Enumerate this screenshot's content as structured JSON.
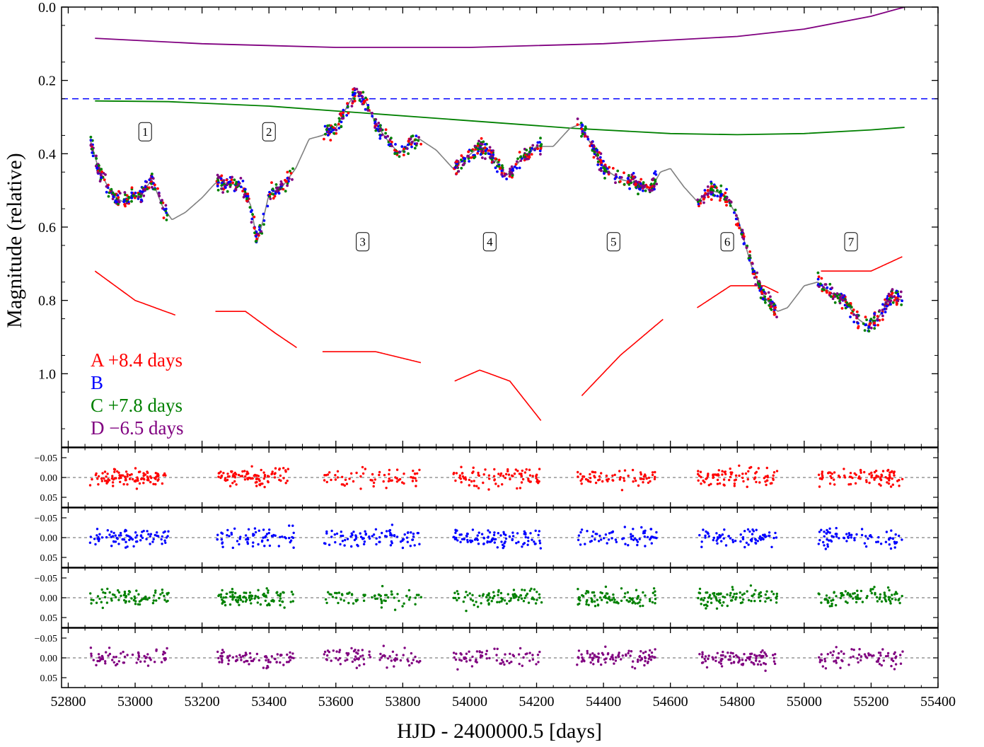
{
  "chart_data": {
    "type": "scatter",
    "title": "",
    "xlabel": "HJD - 2400000.5 [days]",
    "ylabel": "Magnitude (relative)",
    "xlim": [
      52780,
      55400
    ],
    "ylim_main": [
      0.0,
      1.2
    ],
    "y_inverted": true,
    "x_ticks": [
      52800,
      53000,
      53200,
      53400,
      53600,
      53800,
      54000,
      54200,
      54400,
      54600,
      54800,
      55000,
      55200,
      55400
    ],
    "y_ticks_main": [
      0.0,
      0.2,
      0.4,
      0.6,
      0.8,
      1.0
    ],
    "y_tick_labels_main": [
      "0.0",
      "0.2",
      "0.4",
      "0.6",
      "0.8",
      "1.0"
    ],
    "residual_ylim": [
      -0.075,
      0.075
    ],
    "residual_ticks": [
      -0.05,
      0.0,
      0.05
    ],
    "residual_tick_labels": [
      "−0.05",
      "0.00",
      "0.05"
    ],
    "legend_position": "lower-left",
    "legend": [
      {
        "label": "A +8.4 days",
        "color": "#ff0000"
      },
      {
        "label": "B",
        "color": "#0000ff"
      },
      {
        "label": "C +7.8 days",
        "color": "#008000"
      },
      {
        "label": "D −6.5 days",
        "color": "#800080"
      }
    ],
    "season_labels": [
      {
        "text": "1",
        "x": 53030,
        "y": 0.34
      },
      {
        "text": "2",
        "x": 53400,
        "y": 0.34
      },
      {
        "text": "3",
        "x": 53680,
        "y": 0.64
      },
      {
        "text": "4",
        "x": 54060,
        "y": 0.64
      },
      {
        "text": "5",
        "x": 54430,
        "y": 0.64
      },
      {
        "text": "6",
        "x": 54770,
        "y": 0.64
      },
      {
        "text": "7",
        "x": 55140,
        "y": 0.64
      }
    ],
    "seasons": [
      {
        "start": 52865,
        "end": 53100
      },
      {
        "start": 53245,
        "end": 53475
      },
      {
        "start": 53565,
        "end": 53855
      },
      {
        "start": 53950,
        "end": 54215
      },
      {
        "start": 54320,
        "end": 54560
      },
      {
        "start": 54680,
        "end": 54920
      },
      {
        "start": 55040,
        "end": 55295
      }
    ],
    "reference_line": {
      "y": 0.25,
      "color": "#0000ff",
      "style": "dashed"
    },
    "curve_points": [
      [
        52865,
        0.36
      ],
      [
        52890,
        0.44
      ],
      [
        52930,
        0.51
      ],
      [
        52960,
        0.53
      ],
      [
        52990,
        0.52
      ],
      [
        53020,
        0.51
      ],
      [
        53050,
        0.47
      ],
      [
        53080,
        0.54
      ],
      [
        53110,
        0.58
      ],
      [
        53150,
        0.56
      ],
      [
        53200,
        0.52
      ],
      [
        53240,
        0.48
      ],
      [
        53280,
        0.48
      ],
      [
        53320,
        0.49
      ],
      [
        53345,
        0.54
      ],
      [
        53365,
        0.64
      ],
      [
        53380,
        0.59
      ],
      [
        53400,
        0.51
      ],
      [
        53440,
        0.49
      ],
      [
        53480,
        0.44
      ],
      [
        53520,
        0.36
      ],
      [
        53560,
        0.35
      ],
      [
        53600,
        0.33
      ],
      [
        53640,
        0.26
      ],
      [
        53665,
        0.23
      ],
      [
        53690,
        0.26
      ],
      [
        53720,
        0.32
      ],
      [
        53760,
        0.37
      ],
      [
        53790,
        0.4
      ],
      [
        53820,
        0.37
      ],
      [
        53850,
        0.36
      ],
      [
        53900,
        0.39
      ],
      [
        53950,
        0.44
      ],
      [
        53990,
        0.41
      ],
      [
        54030,
        0.38
      ],
      [
        54070,
        0.41
      ],
      [
        54110,
        0.46
      ],
      [
        54150,
        0.42
      ],
      [
        54200,
        0.38
      ],
      [
        54250,
        0.38
      ],
      [
        54300,
        0.33
      ],
      [
        54330,
        0.32
      ],
      [
        54360,
        0.37
      ],
      [
        54400,
        0.44
      ],
      [
        54450,
        0.47
      ],
      [
        54500,
        0.48
      ],
      [
        54540,
        0.5
      ],
      [
        54570,
        0.45
      ],
      [
        54600,
        0.44
      ],
      [
        54640,
        0.49
      ],
      [
        54680,
        0.53
      ],
      [
        54720,
        0.5
      ],
      [
        54760,
        0.51
      ],
      [
        54800,
        0.57
      ],
      [
        54840,
        0.7
      ],
      [
        54880,
        0.79
      ],
      [
        54920,
        0.83
      ],
      [
        54950,
        0.82
      ],
      [
        55000,
        0.76
      ],
      [
        55040,
        0.75
      ],
      [
        55080,
        0.78
      ],
      [
        55120,
        0.8
      ],
      [
        55160,
        0.85
      ],
      [
        55190,
        0.87
      ],
      [
        55220,
        0.85
      ],
      [
        55260,
        0.79
      ],
      [
        55295,
        0.8
      ]
    ],
    "offset_curves": [
      {
        "name": "purple",
        "color": "#800080",
        "points": [
          [
            52880,
            0.085
          ],
          [
            53200,
            0.1
          ],
          [
            53600,
            0.11
          ],
          [
            54000,
            0.11
          ],
          [
            54400,
            0.1
          ],
          [
            54800,
            0.08
          ],
          [
            55000,
            0.06
          ],
          [
            55200,
            0.025
          ],
          [
            55300,
            0.0
          ]
        ]
      },
      {
        "name": "green",
        "color": "#008000",
        "points": [
          [
            52880,
            0.256
          ],
          [
            53100,
            0.258
          ],
          [
            53400,
            0.27
          ],
          [
            53700,
            0.29
          ],
          [
            54000,
            0.31
          ],
          [
            54300,
            0.33
          ],
          [
            54600,
            0.345
          ],
          [
            54800,
            0.348
          ],
          [
            55000,
            0.345
          ],
          [
            55200,
            0.335
          ],
          [
            55300,
            0.328
          ]
        ]
      }
    ],
    "red_segments": [
      [
        [
          52880,
          0.72
        ],
        [
          53000,
          0.8
        ],
        [
          53120,
          0.84
        ]
      ],
      [
        [
          53240,
          0.83
        ],
        [
          53330,
          0.83
        ],
        [
          53420,
          0.89
        ],
        [
          53485,
          0.93
        ]
      ],
      [
        [
          53560,
          0.94
        ],
        [
          53720,
          0.94
        ],
        [
          53855,
          0.97
        ]
      ],
      [
        [
          53955,
          1.02
        ],
        [
          54030,
          0.99
        ],
        [
          54120,
          1.02
        ],
        [
          54215,
          1.13
        ]
      ],
      [
        [
          54335,
          1.06
        ],
        [
          54450,
          0.95
        ],
        [
          54580,
          0.85
        ]
      ],
      [
        [
          54680,
          0.82
        ],
        [
          54780,
          0.76
        ],
        [
          54880,
          0.76
        ],
        [
          54925,
          0.78
        ]
      ],
      [
        [
          55050,
          0.72
        ],
        [
          55200,
          0.72
        ],
        [
          55295,
          0.68
        ]
      ]
    ],
    "scatter_colors": [
      "#ff0000",
      "#0000ff",
      "#008000",
      "#800080"
    ],
    "residual_panels": [
      {
        "series": "A",
        "color": "#ff0000"
      },
      {
        "series": "B",
        "color": "#0000ff"
      },
      {
        "series": "C",
        "color": "#008000"
      },
      {
        "series": "D",
        "color": "#800080"
      }
    ]
  }
}
